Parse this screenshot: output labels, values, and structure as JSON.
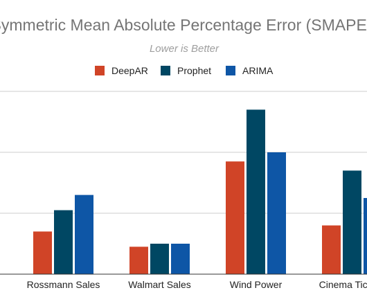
{
  "chart_data": {
    "type": "bar",
    "title": "Symmetric Mean Absolute Percentage Error (SMAPE)",
    "subtitle": "Lower is Better",
    "categories": [
      "Rossmann Sales",
      "Walmart Sales",
      "Wind Power",
      "Cinema Tickets"
    ],
    "series": [
      {
        "name": "DeepAR",
        "color": "#d04427",
        "values": [
          0.14,
          0.09,
          0.37,
          0.16
        ]
      },
      {
        "name": "Prophet",
        "color": "#004763",
        "values": [
          0.21,
          0.1,
          0.54,
          0.34
        ]
      },
      {
        "name": "ARIMA",
        "color": "#0e56a6",
        "values": [
          0.26,
          0.1,
          0.4,
          0.25
        ]
      }
    ],
    "ylim": [
      0,
      0.6
    ],
    "grid": true,
    "legend": "top-center"
  }
}
